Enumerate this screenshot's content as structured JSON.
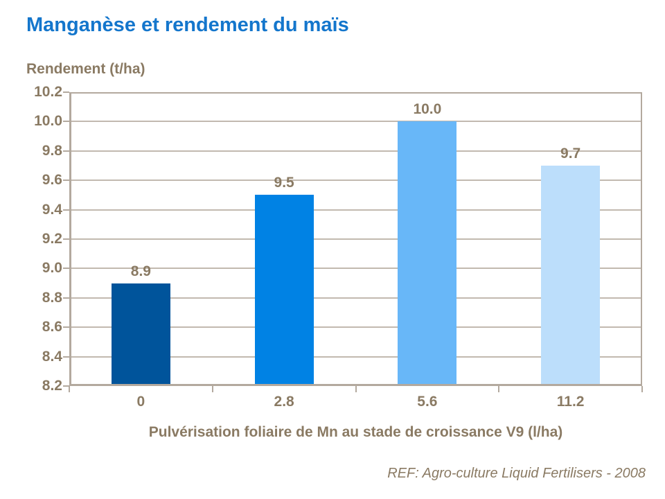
{
  "page": {
    "background_color": "#FFFFFF",
    "title_color": "#1476CC",
    "text_brown_color": "#8A7A63",
    "gridline_color": "#C2B9AF",
    "axis_border_color": "#B3A99E"
  },
  "header": {
    "title": "Manganèse et rendement du maïs"
  },
  "footer": {
    "reference": "REF: Agro-culture Liquid Fertilisers - 2008"
  },
  "chart_data": {
    "type": "bar",
    "title": "Manganèse et rendement du maïs",
    "xlabel": "Pulvérisation foliaire de Mn au stade de croissance V9 (l/ha)",
    "ylabel": "Rendement (t/ha)",
    "categories": [
      "0",
      "2.8",
      "5.6",
      "11.2"
    ],
    "values": [
      8.9,
      9.5,
      10.0,
      9.7
    ],
    "bar_labels": [
      "8.9",
      "9.5",
      "10.0",
      "9.7"
    ],
    "bar_colors": [
      "#00549B",
      "#0082E4",
      "#68B7F8",
      "#BCDEFB"
    ],
    "ylim": [
      8.2,
      10.2
    ],
    "ytick_step": 0.2,
    "ytick_labels": [
      "10.2",
      "10.0",
      "9.8",
      "9.6",
      "9.4",
      "9.2",
      "9.0",
      "8.8",
      "8.6",
      "8.4",
      "8.2"
    ],
    "grid": true,
    "legend": false
  }
}
